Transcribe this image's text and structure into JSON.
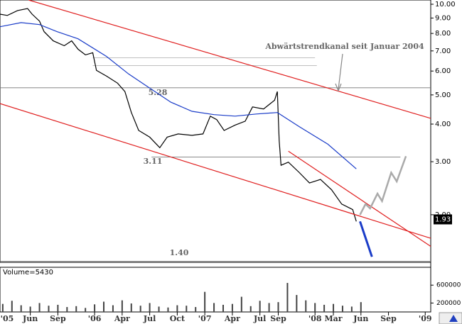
{
  "chart_data": [
    {
      "type": "line",
      "log_y": true,
      "xlim": [
        1.7,
        48.6
      ],
      "ylim": [
        1.39,
        10.33
      ],
      "xticks": [
        {
          "value": 0,
          "label": "'05"
        },
        {
          "value": 5,
          "label": "Jun"
        },
        {
          "value": 8,
          "label": "Sep"
        },
        {
          "value": 12,
          "label": "'06"
        },
        {
          "value": 15,
          "label": "Apr"
        },
        {
          "value": 18,
          "label": "Jul"
        },
        {
          "value": 21,
          "label": "Oct"
        },
        {
          "value": 24,
          "label": "'07"
        },
        {
          "value": 27,
          "label": "Apr"
        },
        {
          "value": 30,
          "label": "Jul"
        },
        {
          "value": 32,
          "label": "Sep"
        },
        {
          "value": 36,
          "label": "'08"
        },
        {
          "value": 38,
          "label": "Mar"
        },
        {
          "value": 41,
          "label": "Jun"
        },
        {
          "value": 44,
          "label": "Sep"
        },
        {
          "value": 48,
          "label": "'09"
        }
      ],
      "yticks": [
        {
          "value": 10,
          "label": "10.00"
        },
        {
          "value": 9,
          "label": "9.00"
        },
        {
          "value": 8,
          "label": "8.00"
        },
        {
          "value": 7,
          "label": "7.00"
        },
        {
          "value": 6,
          "label": "6.00"
        },
        {
          "value": 5,
          "label": "5.00"
        },
        {
          "value": 4,
          "label": "4.00"
        },
        {
          "value": 3,
          "label": "3.00"
        },
        {
          "value": 2,
          "label": "2.00"
        }
      ],
      "series": [
        {
          "color": "#000000",
          "x": [
            1.7,
            2.5,
            3.6,
            4.7,
            5.2,
            6.0,
            6.5,
            7.5,
            8.7,
            9.5,
            10.2,
            11.0,
            11.8,
            12.2,
            13.3,
            14.5,
            15.3,
            16.0,
            16.8,
            18.0,
            19.1,
            19.9,
            21.1,
            22.6,
            23.8,
            24.6,
            25.3,
            26.1,
            27.3,
            28.4,
            29.2,
            30.4,
            31.6,
            31.9,
            32.1,
            32.3,
            33.1,
            34.3,
            35.4,
            36.6,
            37.8,
            38.9,
            40.1,
            40.5
          ],
          "values": [
            9.27,
            9.18,
            9.53,
            9.68,
            9.27,
            8.79,
            8.11,
            7.56,
            7.28,
            7.56,
            7.09,
            6.79,
            6.9,
            6.03,
            5.77,
            5.47,
            5.13,
            4.37,
            3.81,
            3.62,
            3.34,
            3.62,
            3.71,
            3.67,
            3.71,
            4.25,
            4.14,
            3.81,
            3.97,
            4.09,
            4.56,
            4.49,
            4.8,
            5.13,
            3.52,
            2.92,
            2.99,
            2.76,
            2.55,
            2.62,
            2.42,
            2.17,
            2.08,
            1.9
          ]
        },
        {
          "color": "#1a3cc8",
          "x": [
            1.7,
            4.0,
            6.0,
            7.9,
            10.2,
            13.3,
            15.7,
            18.0,
            20.3,
            22.6,
            25.0,
            27.3,
            29.6,
            31.9,
            34.3,
            37.4,
            40.5
          ],
          "values": [
            8.42,
            8.69,
            8.56,
            8.11,
            7.68,
            6.71,
            5.87,
            5.27,
            4.73,
            4.41,
            4.3,
            4.25,
            4.32,
            4.37,
            3.92,
            3.43,
            2.84
          ]
        },
        {
          "color": "#e02020",
          "x": [
            4.8,
            48.6
          ],
          "values": [
            10.33,
            4.18
          ]
        },
        {
          "color": "#e02020",
          "x": [
            1.7,
            48.6
          ],
          "values": [
            4.68,
            1.67
          ]
        },
        {
          "color": "#e02020",
          "x": [
            33.1,
            48.6
          ],
          "values": [
            3.25,
            1.57
          ]
        },
        {
          "color": "#1a3cc8",
          "width": 3,
          "x": [
            40.9,
            42.2
          ],
          "values": [
            1.9,
            1.45
          ]
        },
        {
          "color": "#aaaaaa",
          "width": 2.5,
          "x": [
            40.9,
            41.5,
            42.0,
            42.8,
            43.3,
            44.3,
            44.9,
            45.9
          ],
          "values": [
            2.0,
            2.17,
            2.1,
            2.35,
            2.22,
            2.76,
            2.58,
            3.13
          ]
        }
      ],
      "hlines": [
        {
          "value": 5.28,
          "label": "5.28",
          "x": [
            1.7,
            48.6
          ]
        },
        {
          "value": 3.11,
          "label": "3.11",
          "x": [
            18.2,
            45.3
          ]
        },
        {
          "value": 1.4,
          "label": "1.40",
          "x": [
            1.7,
            48.6
          ]
        },
        {
          "value": 6.64,
          "x": [
            11.8,
            36.0
          ]
        },
        {
          "value": 6.26,
          "x": [
            11.8,
            36.2
          ]
        }
      ],
      "annotation": "Abwärtstrendkanal seit Januar 2004",
      "last_value": 1.93
    },
    {
      "type": "bar",
      "title": "Volume=5430",
      "color": "#444444",
      "xlim": [
        1.7,
        48.6
      ],
      "ylim": [
        0,
        1000000
      ],
      "yticks": [
        600000,
        200000
      ],
      "x": [
        2,
        3,
        4,
        5,
        6,
        7,
        8,
        9,
        10,
        11,
        12,
        13,
        14,
        15,
        16,
        17,
        18,
        19,
        20,
        21,
        22,
        23,
        24,
        25,
        26,
        27,
        28,
        29,
        30,
        31,
        32,
        33,
        34,
        35,
        36,
        37,
        38,
        39,
        40,
        41
      ],
      "values": [
        180000,
        250000,
        150000,
        120000,
        200000,
        140000,
        160000,
        110000,
        130000,
        90000,
        170000,
        230000,
        150000,
        260000,
        190000,
        140000,
        200000,
        120000,
        100000,
        150000,
        140000,
        110000,
        450000,
        200000,
        160000,
        180000,
        340000,
        130000,
        250000,
        200000,
        220000,
        650000,
        380000,
        260000,
        200000,
        160000,
        180000,
        140000,
        120000,
        220000
      ]
    }
  ]
}
